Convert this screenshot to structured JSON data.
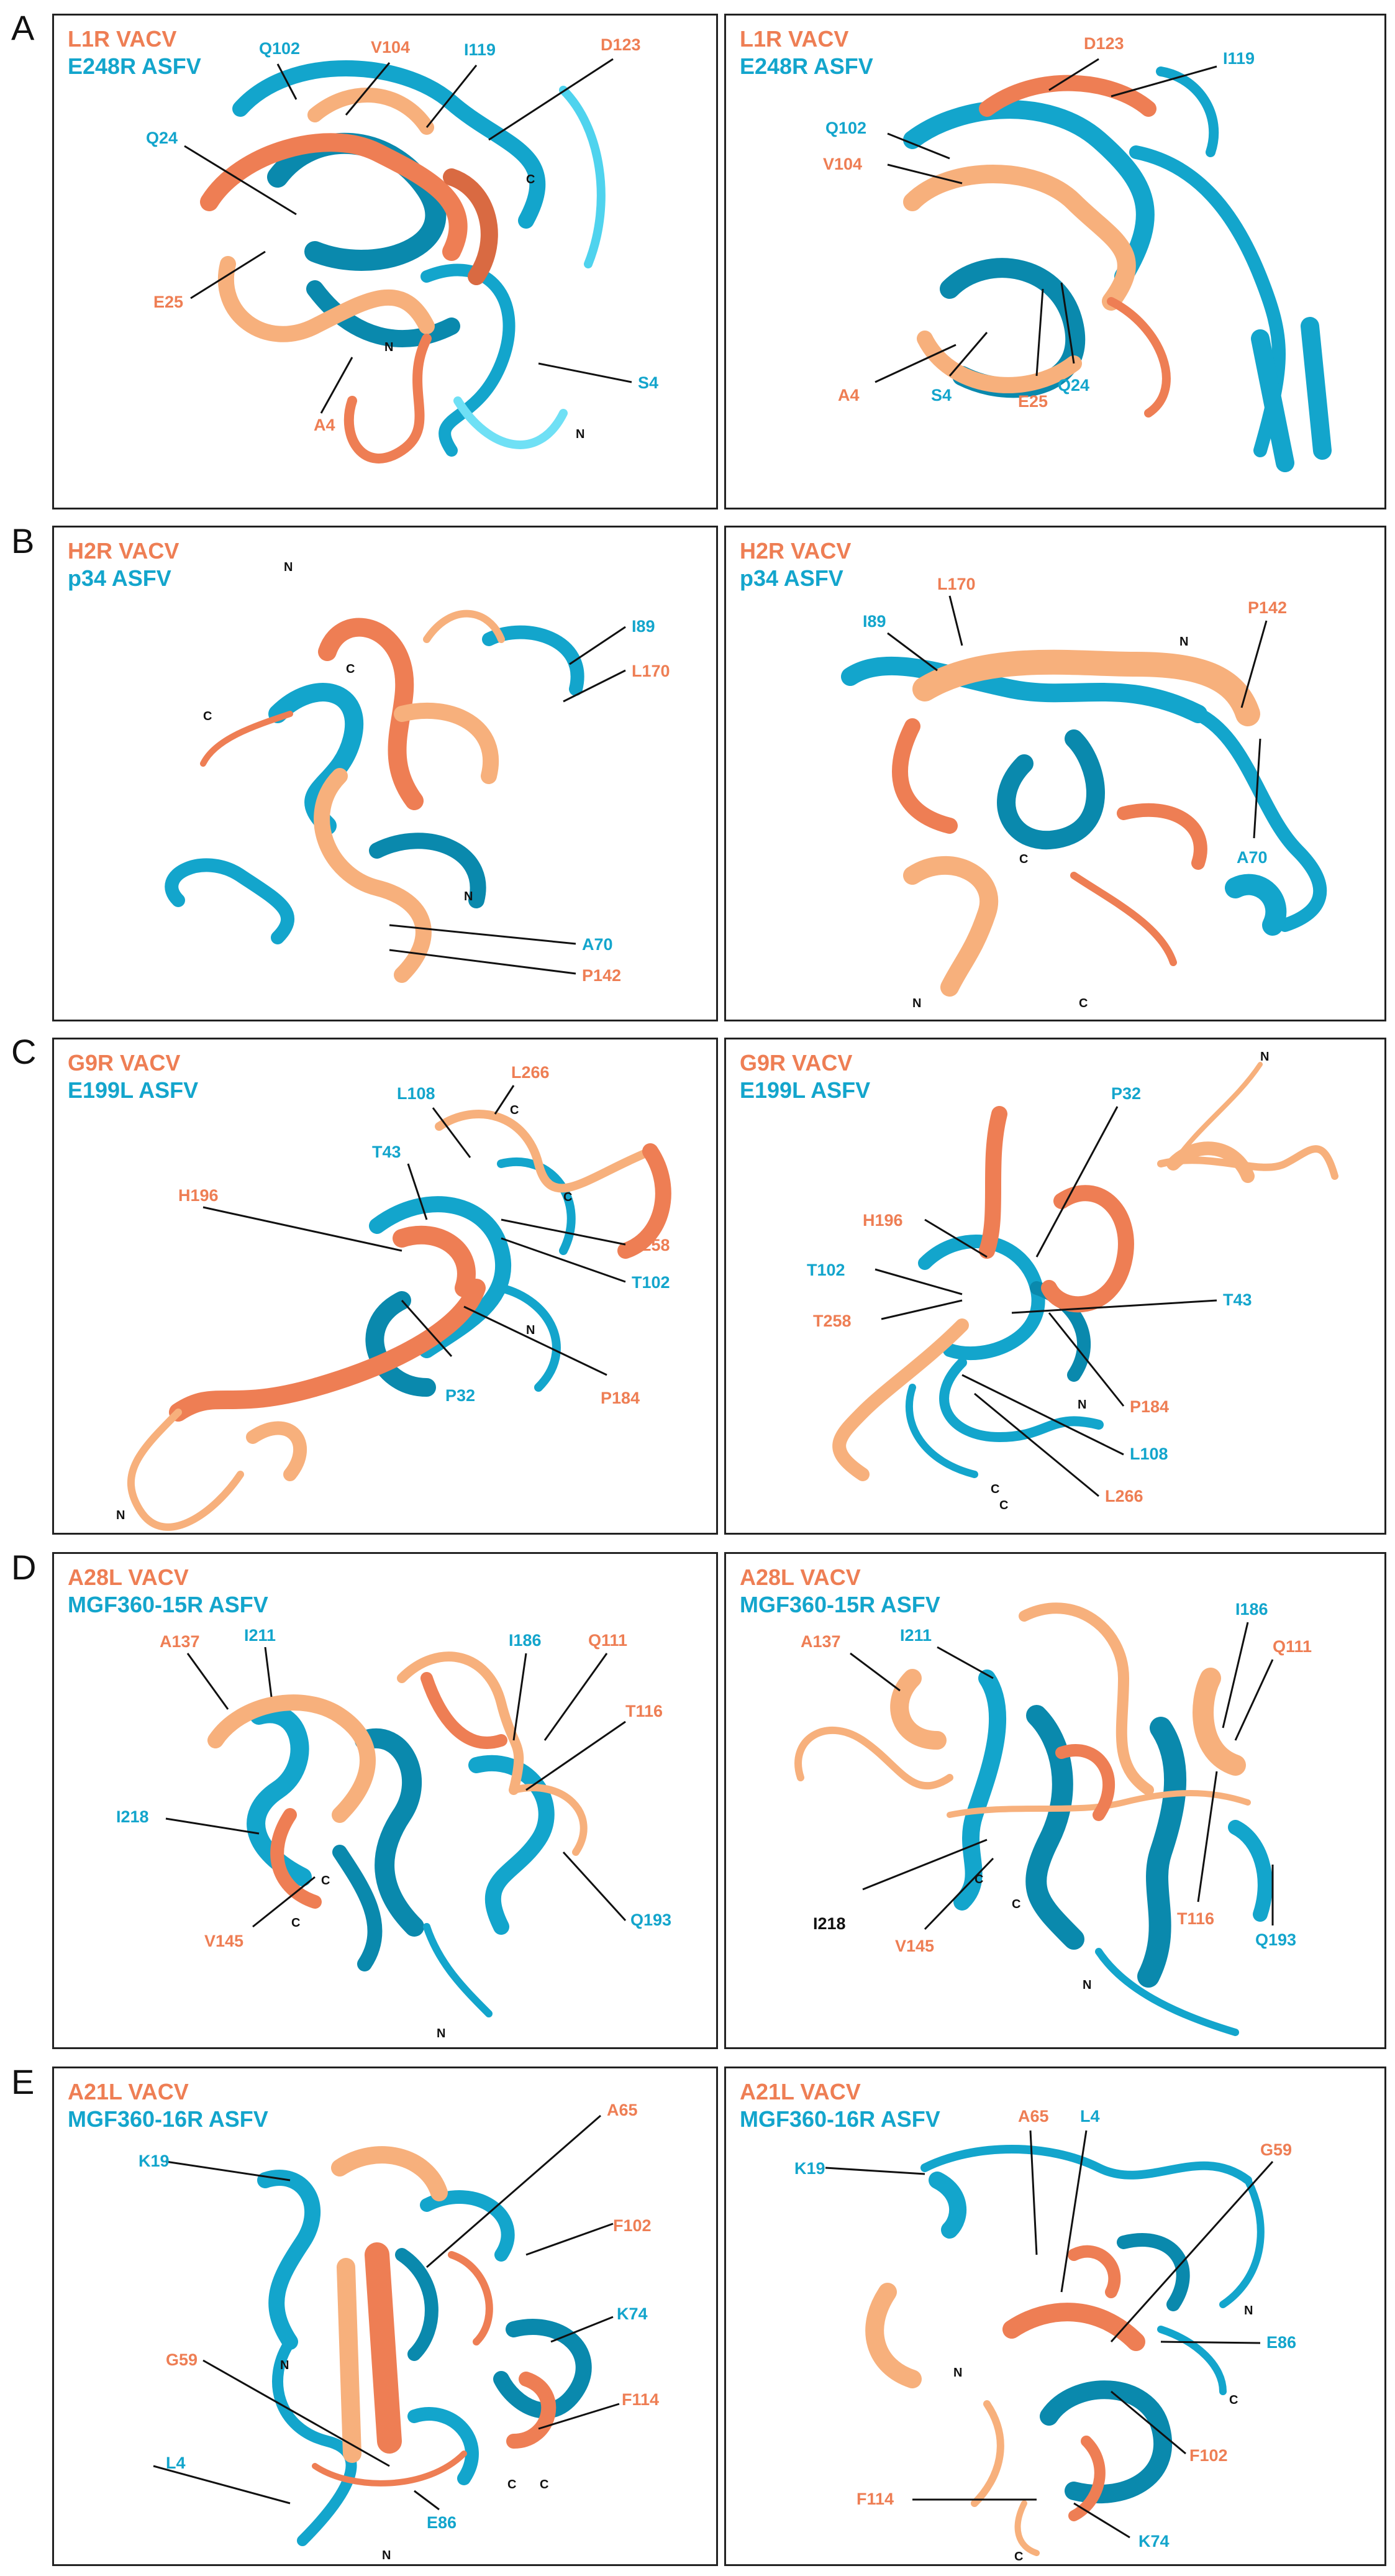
{
  "colors": {
    "vacv": "#ee7e54",
    "vacv_light": "#f7b07c",
    "asfv": "#13a5cc",
    "asfv_dark": "#0a89ad",
    "line": "#111111"
  },
  "rows": [
    {
      "letter": "A",
      "left": {
        "vacv": "L1R VACV",
        "asfv": "E248R ASFV",
        "labels": [
          "Q102",
          "V104",
          "I119",
          "D123",
          "Q24",
          "E25",
          "A4",
          "S4"
        ],
        "termini": [
          "C",
          "N",
          "N"
        ]
      },
      "right": {
        "vacv": "L1R VACV",
        "asfv": "E248R ASFV",
        "labels": [
          "D123",
          "I119",
          "Q102",
          "V104",
          "A4",
          "S4",
          "E25",
          "Q24"
        ],
        "termini": []
      }
    },
    {
      "letter": "B",
      "left": {
        "vacv": "H2R VACV",
        "asfv": "p34 ASFV",
        "labels": [
          "I89",
          "L170",
          "A70",
          "P142"
        ],
        "termini": [
          "N",
          "C",
          "C",
          "N"
        ]
      },
      "right": {
        "vacv": "H2R VACV",
        "asfv": "p34 ASFV",
        "labels": [
          "L170",
          "P142",
          "I89",
          "A70"
        ],
        "termini": [
          "N",
          "C",
          "N",
          "C"
        ]
      }
    },
    {
      "letter": "C",
      "left": {
        "vacv": "G9R VACV",
        "asfv": "E199L ASFV",
        "labels": [
          "L108",
          "L266",
          "T43",
          "H196",
          "T258",
          "T102",
          "P184",
          "P32"
        ],
        "termini": [
          "C",
          "C",
          "N",
          "N"
        ]
      },
      "right": {
        "vacv": "G9R VACV",
        "asfv": "E199L ASFV",
        "labels": [
          "P32",
          "H196",
          "T102",
          "T43",
          "T258",
          "P184",
          "L108",
          "L266"
        ],
        "termini": [
          "N",
          "N",
          "C",
          "C"
        ]
      }
    },
    {
      "letter": "D",
      "left": {
        "vacv": "A28L VACV",
        "asfv": "MGF360-15R ASFV",
        "labels": [
          "A137",
          "I211",
          "I186",
          "Q111",
          "T116",
          "I218",
          "V145",
          "Q193"
        ],
        "termini": [
          "C",
          "C",
          "N"
        ]
      },
      "right": {
        "vacv": "A28L VACV",
        "asfv": "MGF360-15R ASFV",
        "labels": [
          "I186",
          "Q111",
          "A137",
          "I211",
          "I218",
          "V145",
          "T116",
          "Q193"
        ],
        "termini": [
          "C",
          "C",
          "N"
        ]
      }
    },
    {
      "letter": "E",
      "left": {
        "vacv": "A21L VACV",
        "asfv": "MGF360-16R ASFV",
        "labels": [
          "A65",
          "K19",
          "F102",
          "K74",
          "G59",
          "F114",
          "L4",
          "E86"
        ],
        "termini": [
          "N",
          "C",
          "C",
          "N"
        ]
      },
      "right": {
        "vacv": "A21L VACV",
        "asfv": "MGF360-16R ASFV",
        "labels": [
          "A65",
          "L4",
          "K19",
          "G59",
          "E86",
          "F114",
          "K74",
          "F102"
        ],
        "termini": [
          "N",
          "N",
          "C",
          "C"
        ]
      }
    }
  ]
}
